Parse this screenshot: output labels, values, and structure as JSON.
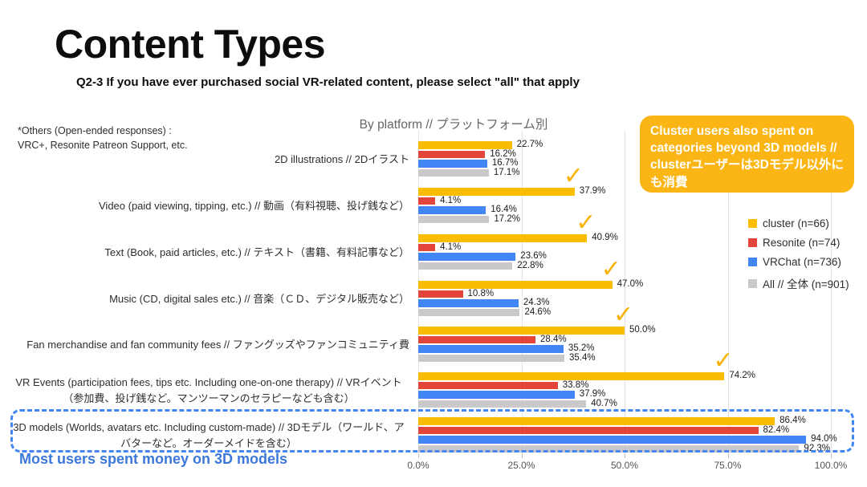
{
  "slide": {
    "title": "Content Types",
    "subtitle": "Q2-3 If you have ever purchased social VR-related content, please select \"all\" that apply",
    "others_note": [
      "*Others (Open-ended responses) :",
      "VRC+, Resonite Patreon Support, etc."
    ],
    "bottom_note": "Most users spent money on 3D models",
    "bottom_note_color": "#3C78D8"
  },
  "callout": {
    "text": "Cluster users also spent on categories beyond 3D models // clusterユーザーは3Dモデル以外にも消費",
    "bg_color": "#FBB616",
    "text_color": "#FFFFFF"
  },
  "chart_data": {
    "type": "bar",
    "orientation": "horizontal",
    "title": "By platform // プラットフォーム別",
    "xlabel": "",
    "ylabel": "",
    "xlim": [
      0,
      100
    ],
    "x_ticks": [
      "0.0%",
      "25.0%",
      "50.0%",
      "75.0%",
      "100.0%"
    ],
    "grid": true,
    "legend_position": "middle-right",
    "categories": [
      "2D illustrations // 2Dイラスト",
      "Video (paid viewing, tipping, etc.) // 動画（有料視聴、投げ銭など）",
      "Text (Book, paid articles, etc.) // テキスト（書籍、有料記事など）",
      "Music (CD, digital sales etc.) // 音楽（ＣＤ、デジタル販売など）",
      "Fan merchandise and fan community fees // ファングッズやファンコミュニティ費",
      "VR Events (participation fees, tips etc. Including one-on-one therapy) // VRイベント（参加費、投げ銭など。マンツーマンのセラピーなども含む）",
      "3D models (Worlds, avatars etc. Including custom-made) // 3Dモデル（ワールド、アバターなど。オーダーメイドを含む）"
    ],
    "series": [
      {
        "key": "cluster",
        "name": "cluster (n=66)",
        "color": "#FBBC04",
        "values": [
          22.7,
          37.9,
          40.9,
          47.0,
          50.0,
          74.2,
          86.4
        ]
      },
      {
        "key": "resonite",
        "name": "Resonite (n=74)",
        "color": "#E4453A",
        "values": [
          16.2,
          4.1,
          4.1,
          10.8,
          28.4,
          33.8,
          82.4
        ]
      },
      {
        "key": "vrchat",
        "name": "VRChat (n=736)",
        "color": "#4285F4",
        "values": [
          16.7,
          16.4,
          23.6,
          24.3,
          35.2,
          37.9,
          94.0
        ]
      },
      {
        "key": "all",
        "name": "All // 全体 (n=901)",
        "color": "#C9C9C9",
        "values": [
          17.1,
          17.2,
          22.8,
          24.6,
          35.4,
          40.7,
          92.3
        ]
      }
    ],
    "checkmarked_category_indexes": [
      1,
      2,
      3,
      4,
      5
    ],
    "checkmark_color": "#F9B208",
    "highlighted_category_index": 6,
    "highlight_box_color": "#4285F4"
  }
}
